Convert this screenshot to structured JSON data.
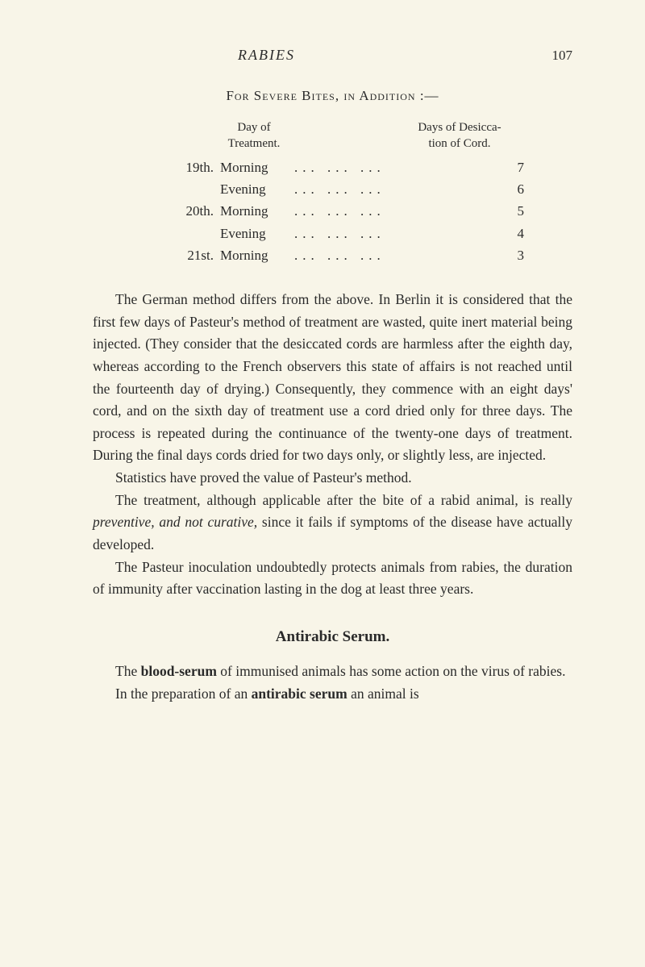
{
  "header": {
    "title": "RABIES",
    "page_number": "107"
  },
  "section_title": "For Severe Bites, in Addition :—",
  "table": {
    "header_left_line1": "Day of",
    "header_left_line2": "Treatment.",
    "header_right_line1": "Days of Desicca-",
    "header_right_line2": "tion of Cord.",
    "rows": [
      {
        "day": "19th.",
        "time": "Morning",
        "dots": "...            ...            ...",
        "value": "7"
      },
      {
        "day": "",
        "time": "Evening",
        "dots": "...            ...            ...",
        "value": "6"
      },
      {
        "day": "20th.",
        "time": "Morning",
        "dots": "...            ...            ...",
        "value": "5"
      },
      {
        "day": "",
        "time": "Evening",
        "dots": "...            ...            ...",
        "value": "4"
      },
      {
        "day": "21st.",
        "time": "Morning",
        "dots": "...            ...            ...",
        "value": "3"
      }
    ]
  },
  "paragraphs": {
    "p1": "The German method differs from the above. In Berlin it is considered that the first few days of Pasteur's method of treatment are wasted, quite inert material being injected. (They consider that the desiccated cords are harmless after the eighth day, whereas according to the French observers this state of affairs is not reached until the fourteenth day of drying.) Consequently, they commence with an eight days' cord, and on the sixth day of treatment use a cord dried only for three days. The process is repeated during the continuance of the twenty-one days of treatment. During the final days cords dried for two days only, or slightly less, are injected.",
    "p2": "Statistics have proved the value of Pasteur's method.",
    "p3_pre": "The treatment, although applicable after the bite of a rabid animal, is really ",
    "p3_italic": "preventive, and not curative,",
    "p3_post": " since it fails if symptoms of the disease have actually developed.",
    "p4": "The Pasteur inoculation undoubtedly protects animals from rabies, the duration of immunity after vaccination lasting in the dog at least three years."
  },
  "subsection_title": "Antirabic Serum.",
  "paragraphs2": {
    "p5_pre": "The ",
    "p5_bold": "blood-serum",
    "p5_post": " of immunised animals has some action on the virus of rabies.",
    "p6_pre": "In the preparation of an ",
    "p6_bold": "antirabic serum",
    "p6_post": " an animal is"
  }
}
